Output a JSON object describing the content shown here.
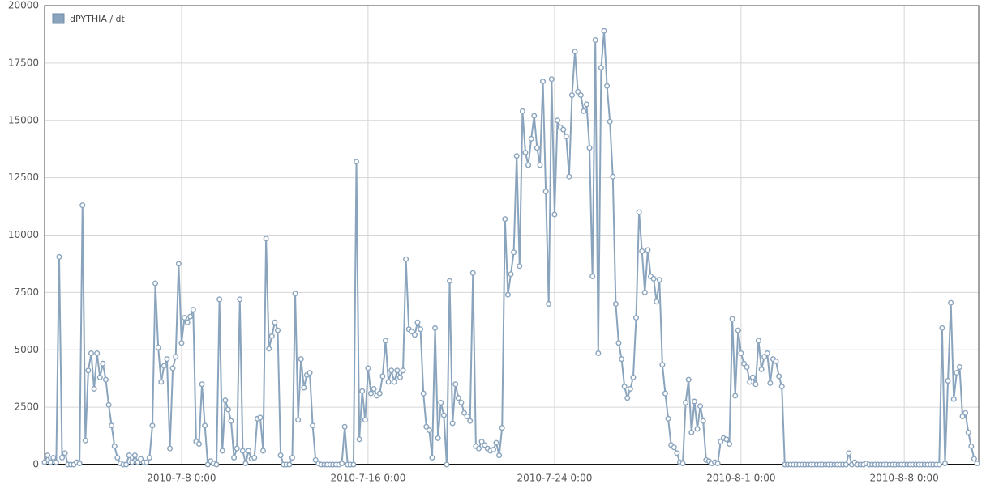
{
  "chart_data": {
    "type": "line",
    "x": [
      "2010-7-2 3:00",
      "2010-7-2 6:00",
      "2010-7-2 9:00",
      "2010-7-2 12:00",
      "2010-7-2 15:00",
      "2010-7-2 18:00",
      "2010-7-2 21:00",
      "2010-7-3 0:00",
      "2010-7-3 3:00",
      "2010-7-3 6:00",
      "2010-7-3 9:00",
      "2010-7-3 12:00",
      "2010-7-3 15:00",
      "2010-7-3 18:00",
      "2010-7-3 21:00",
      "2010-7-4 0:00",
      "2010-7-4 3:00",
      "2010-7-4 6:00",
      "2010-7-4 9:00",
      "2010-7-4 12:00",
      "2010-7-4 15:00",
      "2010-7-4 18:00",
      "2010-7-4 21:00",
      "2010-7-5 0:00",
      "2010-7-5 3:00",
      "2010-7-5 6:00",
      "2010-7-5 9:00",
      "2010-7-5 12:00",
      "2010-7-5 15:00",
      "2010-7-5 18:00",
      "2010-7-5 21:00",
      "2010-7-6 0:00",
      "2010-7-6 3:00",
      "2010-7-6 6:00",
      "2010-7-6 9:00",
      "2010-7-6 12:00",
      "2010-7-6 15:00",
      "2010-7-6 18:00",
      "2010-7-6 21:00",
      "2010-7-7 0:00",
      "2010-7-7 3:00",
      "2010-7-7 6:00",
      "2010-7-7 9:00",
      "2010-7-7 12:00",
      "2010-7-7 15:00",
      "2010-7-7 18:00",
      "2010-7-7 21:00",
      "2010-7-8 0:00",
      "2010-7-8 3:00",
      "2010-7-8 6:00",
      "2010-7-8 9:00",
      "2010-7-8 12:00",
      "2010-7-8 15:00",
      "2010-7-8 18:00",
      "2010-7-8 21:00",
      "2010-7-9 0:00",
      "2010-7-9 3:00",
      "2010-7-9 6:00",
      "2010-7-9 9:00",
      "2010-7-9 12:00",
      "2010-7-9 15:00",
      "2010-7-9 18:00",
      "2010-7-9 21:00",
      "2010-7-10 0:00",
      "2010-7-10 3:00",
      "2010-7-10 6:00",
      "2010-7-10 9:00",
      "2010-7-10 12:00",
      "2010-7-10 15:00",
      "2010-7-10 18:00",
      "2010-7-10 21:00",
      "2010-7-11 0:00",
      "2010-7-11 3:00",
      "2010-7-11 6:00",
      "2010-7-11 9:00",
      "2010-7-11 12:00",
      "2010-7-11 15:00",
      "2010-7-11 18:00",
      "2010-7-11 21:00",
      "2010-7-12 0:00",
      "2010-7-12 3:00",
      "2010-7-12 6:00",
      "2010-7-12 9:00",
      "2010-7-12 12:00",
      "2010-7-12 15:00",
      "2010-7-12 18:00",
      "2010-7-12 21:00",
      "2010-7-13 0:00",
      "2010-7-13 3:00",
      "2010-7-13 6:00",
      "2010-7-13 9:00",
      "2010-7-13 12:00",
      "2010-7-13 15:00",
      "2010-7-13 18:00",
      "2010-7-13 21:00",
      "2010-7-14 0:00",
      "2010-7-14 3:00",
      "2010-7-14 6:00",
      "2010-7-14 9:00",
      "2010-7-14 12:00",
      "2010-7-14 15:00",
      "2010-7-14 18:00",
      "2010-7-14 21:00",
      "2010-7-15 0:00",
      "2010-7-15 3:00",
      "2010-7-15 6:00",
      "2010-7-15 9:00",
      "2010-7-15 12:00",
      "2010-7-15 15:00",
      "2010-7-15 18:00",
      "2010-7-15 21:00",
      "2010-7-16 0:00",
      "2010-7-16 3:00",
      "2010-7-16 6:00",
      "2010-7-16 9:00",
      "2010-7-16 12:00",
      "2010-7-16 15:00",
      "2010-7-16 18:00",
      "2010-7-16 21:00",
      "2010-7-17 0:00",
      "2010-7-17 3:00",
      "2010-7-17 6:00",
      "2010-7-17 9:00",
      "2010-7-17 12:00",
      "2010-7-17 15:00",
      "2010-7-17 18:00",
      "2010-7-17 21:00",
      "2010-7-18 0:00",
      "2010-7-18 3:00",
      "2010-7-18 6:00",
      "2010-7-18 9:00",
      "2010-7-18 12:00",
      "2010-7-18 15:00",
      "2010-7-18 18:00",
      "2010-7-18 21:00",
      "2010-7-19 0:00",
      "2010-7-19 3:00",
      "2010-7-19 6:00",
      "2010-7-19 9:00",
      "2010-7-19 12:00",
      "2010-7-19 15:00",
      "2010-7-19 18:00",
      "2010-7-19 21:00",
      "2010-7-20 0:00",
      "2010-7-20 3:00",
      "2010-7-20 6:00",
      "2010-7-20 9:00",
      "2010-7-20 12:00",
      "2010-7-20 15:00",
      "2010-7-20 18:00",
      "2010-7-20 21:00",
      "2010-7-21 0:00",
      "2010-7-21 3:00",
      "2010-7-21 6:00",
      "2010-7-21 9:00",
      "2010-7-21 12:00",
      "2010-7-21 15:00",
      "2010-7-21 18:00",
      "2010-7-21 21:00",
      "2010-7-22 0:00",
      "2010-7-22 3:00",
      "2010-7-22 6:00",
      "2010-7-22 9:00",
      "2010-7-22 12:00",
      "2010-7-22 15:00",
      "2010-7-22 18:00",
      "2010-7-22 21:00",
      "2010-7-23 0:00",
      "2010-7-23 3:00",
      "2010-7-23 6:00",
      "2010-7-23 9:00",
      "2010-7-23 12:00",
      "2010-7-23 15:00",
      "2010-7-23 18:00",
      "2010-7-23 21:00",
      "2010-7-24 0:00",
      "2010-7-24 3:00",
      "2010-7-24 6:00",
      "2010-7-24 9:00",
      "2010-7-24 12:00",
      "2010-7-24 15:00",
      "2010-7-24 18:00",
      "2010-7-24 21:00",
      "2010-7-25 0:00",
      "2010-7-25 3:00",
      "2010-7-25 6:00",
      "2010-7-25 9:00",
      "2010-7-25 12:00",
      "2010-7-25 15:00",
      "2010-7-25 18:00",
      "2010-7-25 21:00",
      "2010-7-26 0:00",
      "2010-7-26 3:00",
      "2010-7-26 6:00",
      "2010-7-26 9:00",
      "2010-7-26 12:00",
      "2010-7-26 15:00",
      "2010-7-26 18:00",
      "2010-7-26 21:00",
      "2010-7-27 0:00",
      "2010-7-27 3:00",
      "2010-7-27 6:00",
      "2010-7-27 9:00",
      "2010-7-27 12:00",
      "2010-7-27 15:00",
      "2010-7-27 18:00",
      "2010-7-27 21:00",
      "2010-7-28 0:00",
      "2010-7-28 3:00",
      "2010-7-28 6:00",
      "2010-7-28 9:00",
      "2010-7-28 12:00",
      "2010-7-28 15:00",
      "2010-7-28 18:00",
      "2010-7-28 21:00",
      "2010-7-29 0:00",
      "2010-7-29 3:00",
      "2010-7-29 6:00",
      "2010-7-29 9:00",
      "2010-7-29 12:00",
      "2010-7-29 15:00",
      "2010-7-29 18:00",
      "2010-7-29 21:00",
      "2010-7-30 0:00",
      "2010-7-30 3:00",
      "2010-7-30 6:00",
      "2010-7-30 9:00",
      "2010-7-30 12:00",
      "2010-7-30 15:00",
      "2010-7-30 18:00",
      "2010-7-30 21:00",
      "2010-7-31 0:00",
      "2010-7-31 3:00",
      "2010-7-31 6:00",
      "2010-7-31 9:00",
      "2010-7-31 12:00",
      "2010-7-31 15:00",
      "2010-7-31 18:00",
      "2010-7-31 21:00",
      "2010-8-1 0:00",
      "2010-8-1 3:00",
      "2010-8-1 6:00",
      "2010-8-1 9:00",
      "2010-8-1 12:00",
      "2010-8-1 15:00",
      "2010-8-1 18:00",
      "2010-8-1 21:00",
      "2010-8-2 0:00",
      "2010-8-2 3:00",
      "2010-8-2 6:00",
      "2010-8-2 9:00",
      "2010-8-2 12:00",
      "2010-8-2 15:00",
      "2010-8-2 18:00",
      "2010-8-2 21:00",
      "2010-8-3 0:00",
      "2010-8-3 3:00",
      "2010-8-3 6:00",
      "2010-8-3 9:00",
      "2010-8-3 12:00",
      "2010-8-3 15:00",
      "2010-8-3 18:00",
      "2010-8-3 21:00",
      "2010-8-4 0:00",
      "2010-8-4 3:00",
      "2010-8-4 6:00",
      "2010-8-4 9:00",
      "2010-8-4 12:00",
      "2010-8-4 15:00",
      "2010-8-4 18:00",
      "2010-8-4 21:00",
      "2010-8-5 0:00",
      "2010-8-5 3:00",
      "2010-8-5 6:00",
      "2010-8-5 9:00",
      "2010-8-5 12:00",
      "2010-8-5 15:00",
      "2010-8-5 18:00",
      "2010-8-5 21:00",
      "2010-8-6 0:00",
      "2010-8-6 3:00",
      "2010-8-6 6:00",
      "2010-8-6 9:00",
      "2010-8-6 12:00",
      "2010-8-6 15:00",
      "2010-8-6 18:00",
      "2010-8-6 21:00",
      "2010-8-7 0:00",
      "2010-8-7 3:00",
      "2010-8-7 6:00",
      "2010-8-7 9:00",
      "2010-8-7 12:00",
      "2010-8-7 15:00",
      "2010-8-7 18:00",
      "2010-8-7 21:00",
      "2010-8-8 0:00",
      "2010-8-8 3:00",
      "2010-8-8 6:00",
      "2010-8-8 9:00",
      "2010-8-8 12:00",
      "2010-8-8 15:00",
      "2010-8-8 18:00",
      "2010-8-8 21:00",
      "2010-8-9 0:00",
      "2010-8-9 3:00",
      "2010-8-9 6:00",
      "2010-8-9 9:00",
      "2010-8-9 12:00",
      "2010-8-9 15:00",
      "2010-8-9 18:00",
      "2010-8-9 21:00",
      "2010-8-10 0:00",
      "2010-8-10 3:00",
      "2010-8-10 6:00",
      "2010-8-10 9:00",
      "2010-8-10 12:00",
      "2010-8-10 15:00",
      "2010-8-10 18:00",
      "2010-8-10 21:00",
      "2010-8-11 0:00",
      "2010-8-11 3:00"
    ],
    "series": [
      {
        "name": "dPYTHIA / dt",
        "color": "#8aa4bd",
        "values": [
          100,
          400,
          100,
          300,
          100,
          9050,
          300,
          500,
          0,
          0,
          0,
          100,
          50,
          11300,
          1050,
          4100,
          4850,
          3300,
          4850,
          3800,
          4400,
          3700,
          2600,
          1700,
          800,
          300,
          50,
          0,
          0,
          400,
          100,
          400,
          100,
          250,
          100,
          100,
          300,
          1700,
          7900,
          5100,
          3600,
          4300,
          4600,
          700,
          4200,
          4700,
          8750,
          5300,
          6400,
          6200,
          6450,
          6750,
          1000,
          900,
          3500,
          1700,
          0,
          150,
          50,
          0,
          7200,
          600,
          2800,
          2400,
          1900,
          300,
          700,
          7200,
          600,
          50,
          600,
          250,
          300,
          2000,
          2050,
          600,
          9850,
          5050,
          5600,
          6200,
          5850,
          400,
          0,
          0,
          0,
          300,
          7450,
          1950,
          4600,
          3350,
          3900,
          4000,
          1700,
          200,
          50,
          0,
          0,
          0,
          0,
          0,
          0,
          0,
          50,
          1650,
          0,
          0,
          0,
          13200,
          1100,
          3200,
          1950,
          4200,
          3100,
          3300,
          3000,
          3100,
          3850,
          5400,
          3600,
          4100,
          3600,
          4100,
          3800,
          4100,
          8950,
          5900,
          5800,
          5650,
          6200,
          5900,
          3100,
          1650,
          1500,
          300,
          5950,
          1150,
          2700,
          2150,
          0,
          8000,
          1800,
          3500,
          2900,
          2700,
          2250,
          2100,
          1900,
          8350,
          800,
          700,
          1000,
          850,
          700,
          600,
          650,
          950,
          400,
          1600,
          10700,
          7400,
          8300,
          9250,
          13450,
          8650,
          15400,
          13600,
          13050,
          14200,
          15200,
          13800,
          13050,
          16700,
          11900,
          7000,
          16800,
          10900,
          15000,
          14700,
          14600,
          14300,
          12550,
          16100,
          18000,
          16250,
          16100,
          15400,
          15700,
          13800,
          8200,
          18500,
          4850,
          17300,
          18900,
          16500,
          14950,
          12550,
          7000,
          5300,
          4600,
          3400,
          2900,
          3300,
          3800,
          6400,
          11000,
          9300,
          7500,
          9350,
          8200,
          8100,
          7100,
          8050,
          4350,
          3100,
          2000,
          850,
          750,
          500,
          100,
          50,
          2700,
          3700,
          1400,
          2750,
          1550,
          2550,
          1900,
          200,
          150,
          50,
          100,
          50,
          1000,
          1150,
          1100,
          900,
          6350,
          3000,
          5850,
          4850,
          4400,
          4250,
          3600,
          3800,
          3500,
          5400,
          4150,
          4700,
          4850,
          3550,
          4600,
          4500,
          3850,
          3400,
          0,
          0,
          0,
          0,
          0,
          0,
          0,
          0,
          0,
          0,
          0,
          0,
          0,
          0,
          0,
          0,
          0,
          0,
          0,
          0,
          0,
          0,
          500,
          0,
          100,
          0,
          0,
          0,
          50,
          0,
          0,
          0,
          0,
          0,
          0,
          0,
          0,
          0,
          0,
          0,
          0,
          0,
          0,
          0,
          0,
          0,
          0,
          0,
          0,
          0,
          0,
          0,
          0,
          0,
          5950,
          50,
          3650,
          7050,
          2850,
          4000,
          4250,
          2100,
          2250,
          1400,
          800,
          250,
          50
        ]
      }
    ],
    "xlim": [
      "2010-7-2 3:00",
      "2010-8-11 3:00"
    ],
    "xticks": [
      "2010-7-8 0:00",
      "2010-7-16 0:00",
      "2010-7-24 0:00",
      "2010-8-1 0:00",
      "2010-8-8 0:00"
    ],
    "ylim": [
      0,
      20000
    ],
    "yticks": [
      0,
      2500,
      5000,
      7500,
      10000,
      12500,
      15000,
      17500,
      20000
    ],
    "grid": true,
    "legend": "top-left"
  }
}
